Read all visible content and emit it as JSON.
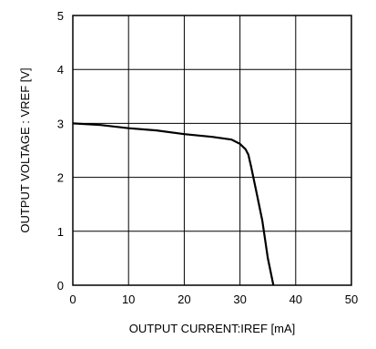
{
  "chart_data": {
    "type": "line",
    "title": "",
    "xlabel": "OUTPUT CURRENT:IREF [mA]",
    "ylabel": "OUTPUT VOLTAGE : VREF [V]",
    "xlim": [
      0,
      50
    ],
    "ylim": [
      0,
      5
    ],
    "x_ticks": [
      "0",
      "10",
      "20",
      "30",
      "40",
      "50"
    ],
    "y_ticks": [
      "0",
      "1",
      "2",
      "3",
      "4",
      "5"
    ],
    "grid": true,
    "series": [
      {
        "x": [
          0,
          5,
          10,
          15,
          20,
          25,
          28.5,
          30,
          31,
          31.5,
          32,
          33,
          34,
          35,
          36
        ],
        "y": [
          3.0,
          2.97,
          2.91,
          2.87,
          2.8,
          2.75,
          2.7,
          2.62,
          2.52,
          2.42,
          2.2,
          1.7,
          1.2,
          0.5,
          0.0
        ]
      }
    ]
  }
}
